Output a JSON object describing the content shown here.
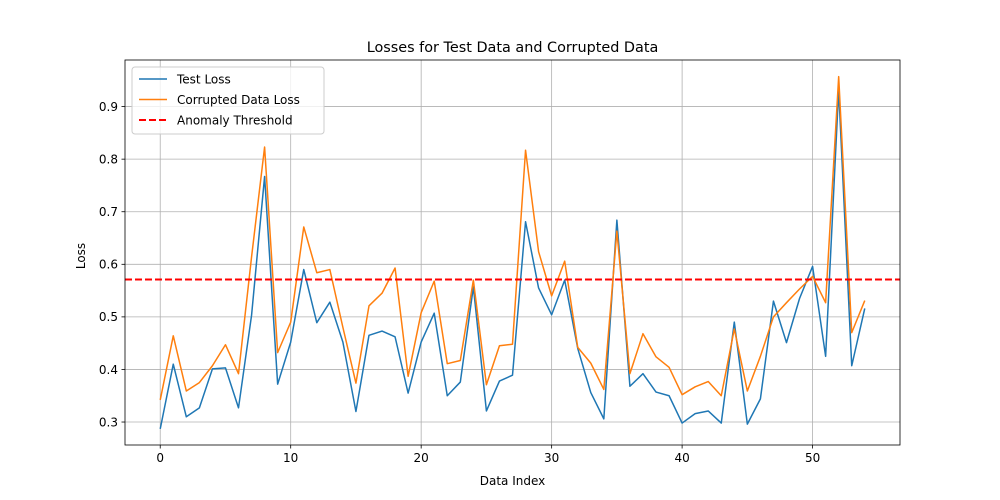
{
  "chart_data": {
    "type": "line",
    "title": "Losses for Test Data and Corrupted Data",
    "xlabel": "Data Index",
    "ylabel": "Loss",
    "xlim": [
      -2.7,
      56.7
    ],
    "ylim": [
      0.2563,
      0.9886
    ],
    "xticks": [
      0,
      10,
      20,
      30,
      40,
      50
    ],
    "xtick_labels": [
      "0",
      "10",
      "20",
      "30",
      "40",
      "50"
    ],
    "yticks": [
      0.3,
      0.4,
      0.5,
      0.6,
      0.7,
      0.8,
      0.9
    ],
    "ytick_labels": [
      "0.3",
      "0.4",
      "0.5",
      "0.6",
      "0.7",
      "0.8",
      "0.9"
    ],
    "grid": true,
    "legend_position": "top-left",
    "x": [
      0,
      1,
      2,
      3,
      4,
      5,
      6,
      7,
      8,
      9,
      10,
      11,
      12,
      13,
      14,
      15,
      16,
      17,
      18,
      19,
      20,
      21,
      22,
      23,
      24,
      25,
      26,
      27,
      28,
      29,
      30,
      31,
      32,
      33,
      34,
      35,
      36,
      37,
      38,
      39,
      40,
      41,
      42,
      43,
      44,
      45,
      46,
      47,
      48,
      49,
      50,
      51,
      52,
      53,
      54
    ],
    "series": [
      {
        "name": "Test Loss",
        "color": "#1f77b4",
        "style": "solid",
        "values": [
          0.287,
          0.41,
          0.31,
          0.327,
          0.401,
          0.403,
          0.327,
          0.503,
          0.767,
          0.372,
          0.452,
          0.59,
          0.489,
          0.528,
          0.452,
          0.32,
          0.465,
          0.473,
          0.462,
          0.355,
          0.452,
          0.507,
          0.35,
          0.376,
          0.557,
          0.321,
          0.378,
          0.389,
          0.681,
          0.555,
          0.504,
          0.57,
          0.44,
          0.356,
          0.306,
          0.684,
          0.368,
          0.392,
          0.357,
          0.35,
          0.298,
          0.316,
          0.321,
          0.298,
          0.49,
          0.296,
          0.344,
          0.53,
          0.451,
          0.535,
          0.596,
          0.425,
          0.932,
          0.407,
          0.516
        ]
      },
      {
        "name": "Corrupted Data Loss",
        "color": "#ff7f0e",
        "style": "solid",
        "values": [
          0.342,
          0.464,
          0.359,
          0.375,
          0.407,
          0.447,
          0.392,
          0.614,
          0.823,
          0.432,
          0.49,
          0.671,
          0.584,
          0.59,
          0.48,
          0.374,
          0.521,
          0.545,
          0.593,
          0.387,
          0.508,
          0.568,
          0.411,
          0.417,
          0.57,
          0.371,
          0.445,
          0.448,
          0.817,
          0.624,
          0.54,
          0.606,
          0.442,
          0.412,
          0.362,
          0.663,
          0.392,
          0.468,
          0.424,
          0.404,
          0.352,
          0.367,
          0.377,
          0.35,
          0.477,
          0.359,
          0.425,
          0.5,
          0.527,
          0.553,
          0.577,
          0.527,
          0.957,
          0.47,
          0.531
        ]
      }
    ],
    "threshold": {
      "name": "Anomaly Threshold",
      "color": "#ff0000",
      "style": "dashed",
      "value": 0.571
    },
    "axis_color": "#000000",
    "grid_color": "#b0b0b0"
  }
}
